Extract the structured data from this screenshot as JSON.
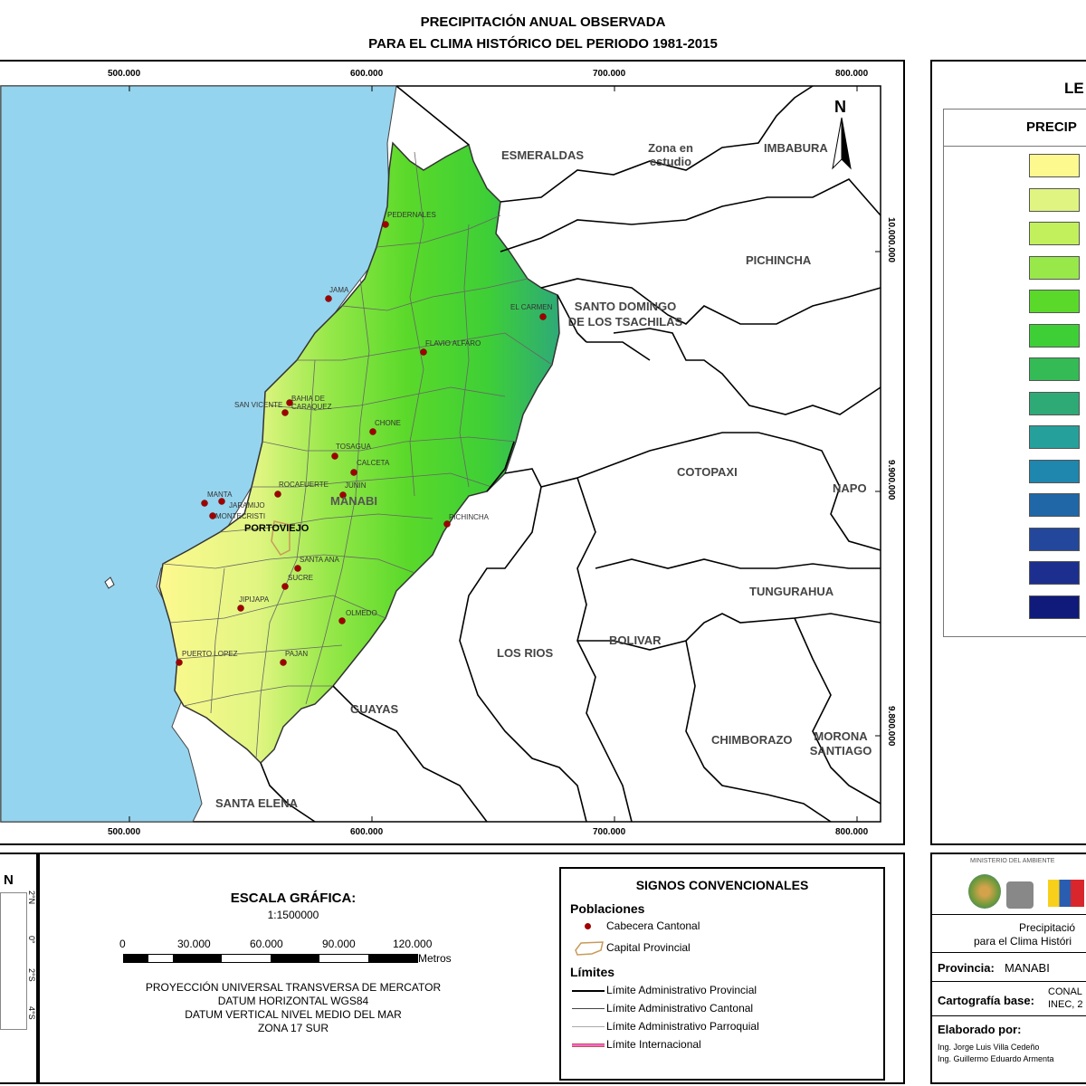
{
  "title": {
    "line1": "PRECIPITACIÓN ANUAL OBSERVADA",
    "line2": "PARA EL CLIMA HISTÓRICO DEL PERIODO 1981-2015"
  },
  "map": {
    "x_ticks_top": [
      "500.000",
      "600.000",
      "700.000",
      "800.000"
    ],
    "x_ticks_bottom": [
      "500.000",
      "600.000",
      "700.000",
      "800.000"
    ],
    "y_ticks": [
      "10.000.000",
      "9.900.000",
      "9.800.000"
    ],
    "north_label": "N",
    "provinces": {
      "esmeraldas": "ESMERALDAS",
      "zona": "Zona en estudio",
      "imbabura": "IMBABURA",
      "pichincha": "PICHINCHA",
      "santo_domingo": "SANTO DOMINGO DE LOS TSACHILAS",
      "cotopaxi": "COTOPAXI",
      "napo": "NAPO",
      "tungurahua": "TUNGURAHUA",
      "los_rios": "LOS RIOS",
      "bolivar": "BOLIVAR",
      "guayas": "GUAYAS",
      "chimborazo": "CHIMBORAZO",
      "morona": "MORONA SANTIAGO",
      "santa_elena": "SANTA ELENA",
      "manabi": "MANABI",
      "portoviejo": "PORTOVIEJO"
    },
    "towns": {
      "pedernales": "PEDERNALES",
      "jama": "JAMA",
      "el_carmen": "EL CARMEN",
      "flavio": "FLAVIO ALFARO",
      "bahia": "BAHIA DE CARAQUEZ",
      "san_vicente": "SAN VICENTE",
      "chone": "CHONE",
      "tosagua": "TOSAGUA",
      "calceta": "CALCETA",
      "rocafuerte": "ROCAFUERTE",
      "junin": "JUNIN",
      "manta": "MANTA",
      "jaramijo": "JARAMIJO",
      "montecristi": "MONTECRISTI",
      "pichincha_t": "PICHINCHA",
      "santa_ana": "SANTA ANA",
      "sucre": "SUCRE",
      "jipijapa": "JIPIJAPA",
      "olmedo": "OLMEDO",
      "puerto_lopez": "PUERTO LOPEZ",
      "pajan": "PAJAN"
    }
  },
  "legend": {
    "title": "LE",
    "subtitle": "PRECIP",
    "colors": [
      "#fdf98f",
      "#e0f581",
      "#c2f05c",
      "#98e84a",
      "#5ad92a",
      "#3ecf36",
      "#34bb55",
      "#2eaa77",
      "#26a09a",
      "#1f86ad",
      "#1f67a7",
      "#23479b",
      "#1d2f8e",
      "#101a7a"
    ]
  },
  "scale": {
    "title": "ESCALA GRÁFICA:",
    "ratio": "1:1500000",
    "ticks": [
      "0",
      "30.000",
      "60.000",
      "90.000",
      "120.000"
    ],
    "unit": "Metros",
    "projection": [
      "PROYECCIÓN UNIVERSAL TRANSVERSA DE MERCATOR",
      "DATUM HORIZONTAL WGS84",
      "DATUM VERTICAL NIVEL MEDIO DEL MAR",
      "ZONA 17 SUR"
    ]
  },
  "inset": {
    "title": "N",
    "lat_ticks": [
      "2°N",
      "0°",
      "2°S",
      "4°S"
    ]
  },
  "signs": {
    "title": "SIGNOS CONVENCIONALES",
    "poblaciones": "Poblaciones",
    "cabecera": "Cabecera Cantonal",
    "capital": "Capital Provincial",
    "limites": "Límites",
    "provincial": "Límite Administrativo Provincial",
    "cantonal": "Límite Administrativo Cantonal",
    "parroquial": "Límite Administrativo Parroquial",
    "internacional": "Límite Internacional"
  },
  "info": {
    "ministry": "MINISTERIO DEL AMBIENTE",
    "precip_line1": "Precipitació",
    "precip_line2": "para el Clima Históri",
    "provincia_label": "Provincia:",
    "provincia_value": "MANABI",
    "cartografia_label": "Cartografía base:",
    "cartografia_value1": "CONAL",
    "cartografia_value2": "INEC, 2",
    "elaborado_label": "Elaborado por:",
    "author1": "Ing. Jorge Luis Villa Cedeño",
    "author2": "Ing. Guillermo Eduardo Armenta"
  }
}
